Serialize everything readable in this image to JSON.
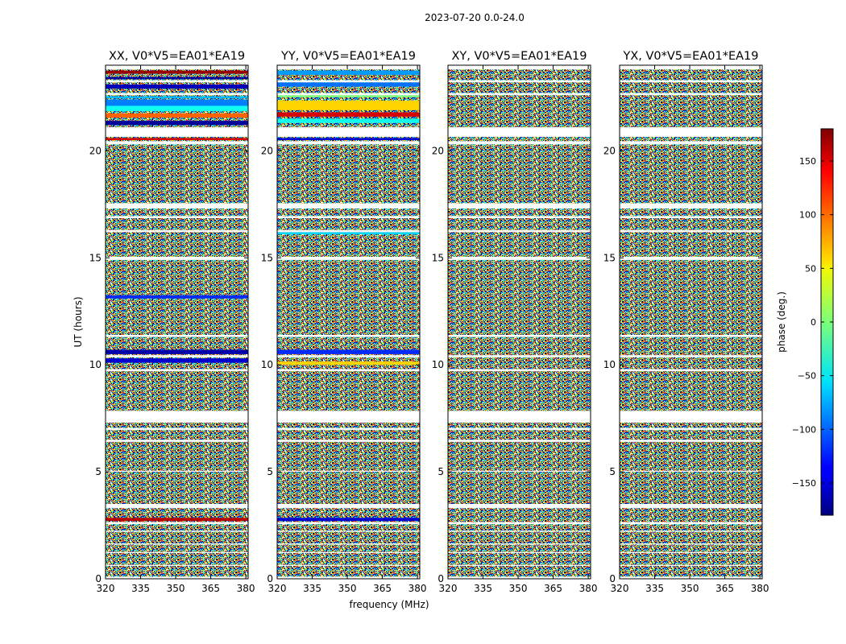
{
  "chart_data": {
    "type": "heatmap",
    "suptitle": "2023-07-20 0.0-24.0",
    "panels": [
      {
        "title": "XX, V0*V5=EA01*EA19",
        "style": "xx"
      },
      {
        "title": "YY, V0*V5=EA01*EA19",
        "style": "yy"
      },
      {
        "title": "XY, V0*V5=EA01*EA19",
        "style": "cross"
      },
      {
        "title": "YX, V0*V5=EA01*EA19",
        "style": "cross"
      }
    ],
    "x": {
      "label": "frequency (MHz)",
      "lim": [
        320,
        381
      ],
      "ticks": [
        320,
        335,
        350,
        365,
        380
      ],
      "tick_labels": [
        "320",
        "335",
        "350",
        "365",
        "380"
      ]
    },
    "y": {
      "label": "UT (hours)",
      "lim": [
        0,
        24
      ],
      "ticks": [
        0,
        5,
        10,
        15,
        20
      ],
      "tick_labels": [
        "0",
        "5",
        "10",
        "15",
        "20"
      ]
    },
    "colorbar": {
      "label": "phase (deg.)",
      "lim": [
        -180,
        180
      ],
      "ticks": [
        -150,
        -100,
        -50,
        0,
        50,
        100,
        150
      ],
      "tick_labels": [
        "−150",
        "−100",
        "−50",
        "0",
        "50",
        "100",
        "150"
      ],
      "colormap": "jet"
    },
    "flagged_ut_hours": [
      [
        0.0,
        0.1
      ],
      [
        0.6,
        0.65
      ],
      [
        1.2,
        1.25
      ],
      [
        1.6,
        1.65
      ],
      [
        2.2,
        2.25
      ],
      [
        2.55,
        2.65
      ],
      [
        3.3,
        3.5
      ],
      [
        5.0,
        5.05
      ],
      [
        6.4,
        6.5
      ],
      [
        6.95,
        7.05
      ],
      [
        7.3,
        7.85
      ],
      [
        9.7,
        9.8
      ],
      [
        10.35,
        10.45
      ],
      [
        11.3,
        11.4
      ],
      [
        14.9,
        15.05
      ],
      [
        16.2,
        16.3
      ],
      [
        16.85,
        16.95
      ],
      [
        17.3,
        17.55
      ],
      [
        20.3,
        20.45
      ],
      [
        20.65,
        21.1
      ],
      [
        22.6,
        22.7
      ],
      [
        23.2,
        23.3
      ],
      [
        23.8,
        24.0
      ]
    ]
  }
}
